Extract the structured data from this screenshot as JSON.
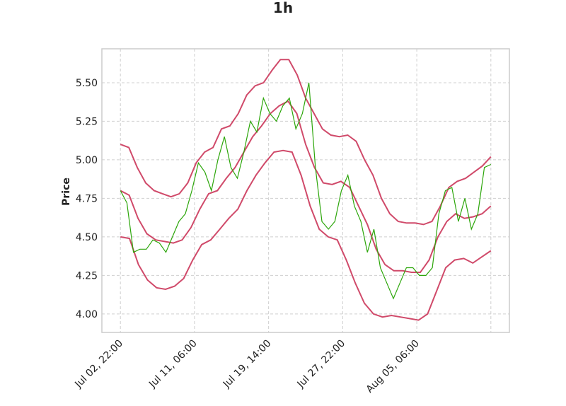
{
  "chart_data": {
    "type": "line",
    "title": "1h",
    "xlabel": "",
    "ylabel": "Price",
    "ylim": [
      3.88,
      5.72
    ],
    "yticks": [
      4.0,
      4.25,
      4.5,
      4.75,
      5.0,
      5.25,
      5.5
    ],
    "ytick_labels": [
      "4.00",
      "4.25",
      "4.50",
      "4.75",
      "5.00",
      "5.25",
      "5.50"
    ],
    "xticks": [
      0,
      20,
      40,
      60,
      80,
      100
    ],
    "xtick_labels": [
      "Jul 02, 22:00",
      "Jul 11, 06:00",
      "Jul 19, 14:00",
      "Jul 27, 22:00",
      "Aug 05, 06:00",
      ""
    ],
    "xlim": [
      -5,
      105
    ],
    "grid": true,
    "colors": {
      "price": "#2ca60a",
      "bands": "#d04a6a",
      "grid": "#cfcfcf",
      "frame": "#cccccc"
    },
    "series": [
      {
        "role": "price",
        "values": [
          4.8,
          4.72,
          4.4,
          4.42,
          4.42,
          4.48,
          4.46,
          4.4,
          4.5,
          4.6,
          4.65,
          4.8,
          4.98,
          4.92,
          4.8,
          5.0,
          5.15,
          4.95,
          4.88,
          5.05,
          5.25,
          5.18,
          5.4,
          5.3,
          5.25,
          5.35,
          5.4,
          5.2,
          5.3,
          5.5,
          4.95,
          4.6,
          4.55,
          4.6,
          4.8,
          4.9,
          4.7,
          4.6,
          4.4,
          4.55,
          4.3,
          4.2,
          4.1,
          4.2,
          4.3,
          4.3,
          4.25,
          4.25,
          4.3,
          4.65,
          4.8,
          4.82,
          4.6,
          4.75,
          4.55,
          4.65,
          4.95,
          4.97
        ]
      },
      {
        "role": "upper",
        "values": [
          5.1,
          5.08,
          4.95,
          4.85,
          4.8,
          4.78,
          4.76,
          4.78,
          4.85,
          4.98,
          5.05,
          5.08,
          5.2,
          5.22,
          5.3,
          5.42,
          5.48,
          5.5,
          5.58,
          5.65,
          5.65,
          5.55,
          5.4,
          5.3,
          5.2,
          5.16,
          5.15,
          5.16,
          5.12,
          5.0,
          4.9,
          4.75,
          4.65,
          4.6,
          4.59,
          4.59,
          4.58,
          4.6,
          4.7,
          4.82,
          4.86,
          4.88,
          4.92,
          4.96,
          5.02
        ]
      },
      {
        "role": "middle",
        "values": [
          4.8,
          4.77,
          4.62,
          4.52,
          4.48,
          4.47,
          4.46,
          4.48,
          4.56,
          4.68,
          4.78,
          4.8,
          4.88,
          4.95,
          5.05,
          5.15,
          5.22,
          5.3,
          5.35,
          5.38,
          5.3,
          5.1,
          4.95,
          4.85,
          4.84,
          4.86,
          4.82,
          4.7,
          4.58,
          4.42,
          4.32,
          4.28,
          4.28,
          4.27,
          4.27,
          4.35,
          4.5,
          4.6,
          4.65,
          4.62,
          4.63,
          4.65,
          4.7
        ]
      },
      {
        "role": "lower",
        "values": [
          4.5,
          4.49,
          4.32,
          4.22,
          4.17,
          4.16,
          4.18,
          4.23,
          4.35,
          4.45,
          4.48,
          4.55,
          4.62,
          4.68,
          4.8,
          4.9,
          4.98,
          5.05,
          5.06,
          5.05,
          4.9,
          4.7,
          4.55,
          4.5,
          4.48,
          4.35,
          4.2,
          4.07,
          4.0,
          3.98,
          3.99,
          3.98,
          3.97,
          3.96,
          4.0,
          4.15,
          4.3,
          4.35,
          4.36,
          4.33,
          4.37,
          4.41
        ]
      }
    ]
  }
}
